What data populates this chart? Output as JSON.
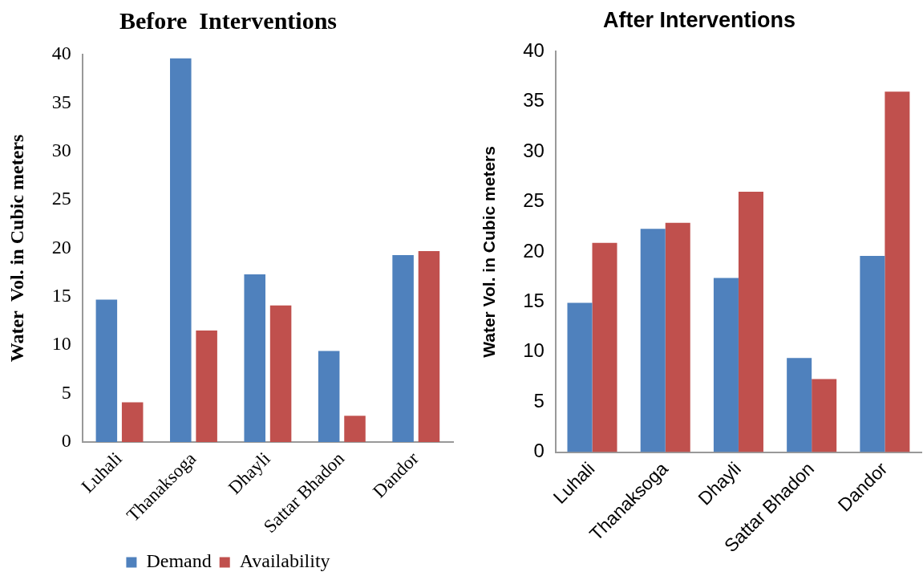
{
  "chart_data": [
    {
      "type": "bar",
      "title": "Before  Interventions",
      "ylabel": "Water  Vol. in Cubic meters",
      "categories": [
        "Luhali",
        "Thanaksoga",
        "Dhayli",
        "Sattar Bhadon",
        "Dandor"
      ],
      "series": [
        {
          "name": "Demand",
          "color": "#4f81bd",
          "values": [
            14.7,
            39.6,
            17.3,
            9.4,
            19.3
          ]
        },
        {
          "name": "Availability",
          "color": "#c0504d",
          "values": [
            4.1,
            11.5,
            14.1,
            2.7,
            19.7
          ]
        }
      ],
      "ylim": [
        0,
        40
      ],
      "yticks": [
        0,
        5,
        10,
        15,
        20,
        25,
        30,
        35,
        40
      ],
      "legend": "bottom"
    },
    {
      "type": "bar",
      "title": "After Interventions",
      "ylabel": "Water Vol. in Cubic meters",
      "categories": [
        "Luhali",
        "Thanaksoga",
        "Dhayli",
        "Sattar Bhadon",
        "Dandor"
      ],
      "series": [
        {
          "color": "#4f81bd",
          "values": [
            14.9,
            22.3,
            17.4,
            9.4,
            19.6
          ]
        },
        {
          "color": "#c0504d",
          "values": [
            20.9,
            22.9,
            26.0,
            7.3,
            36.0
          ]
        }
      ],
      "ylim": [
        0,
        40
      ],
      "yticks": [
        0,
        5,
        10,
        15,
        20,
        25,
        30,
        35,
        40
      ]
    }
  ]
}
